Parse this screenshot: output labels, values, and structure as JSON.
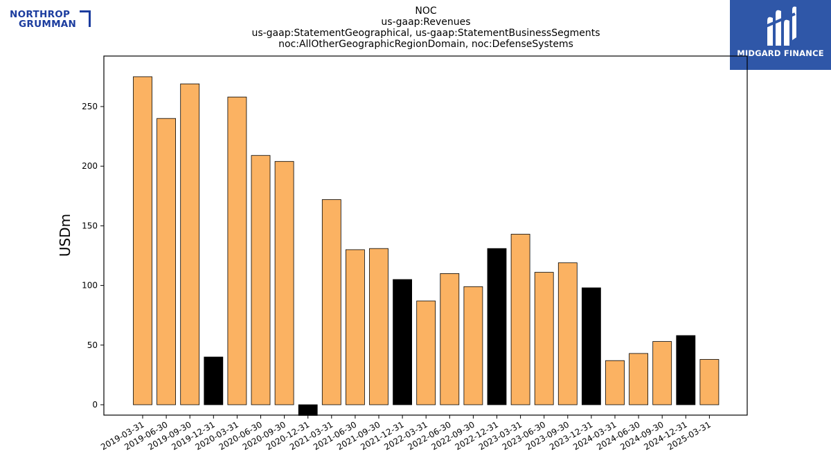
{
  "header": {
    "title_lines": [
      "NOC",
      "us-gaap:Revenues",
      "us-gaap:StatementGeographical, us-gaap:StatementBusinessSegments",
      "noc:AllOtherGeographicRegionDomain, noc:DefenseSystems"
    ]
  },
  "logos": {
    "left": {
      "line1": "NORTHROP",
      "line2": "GRUMMAN",
      "color": "#1b3c9e"
    },
    "right": {
      "text": "MIDGARD FINANCE",
      "background": "#2f57a8"
    }
  },
  "colors": {
    "bar_default": "#fbb262",
    "bar_highlight": "#000000"
  },
  "chart_data": {
    "type": "bar",
    "title": "NOC\nus-gaap:Revenues\nus-gaap:StatementGeographical, us-gaap:StatementBusinessSegments\nnoc:AllOtherGeographicRegionDomain, noc:DefenseSystems",
    "xlabel": "",
    "ylabel": "USDm",
    "ylim": [
      -9,
      293
    ],
    "yticks": [
      0,
      50,
      100,
      150,
      200,
      250
    ],
    "grid": false,
    "categories": [
      "2019-03-31",
      "2019-06-30",
      "2019-09-30",
      "2019-12-31",
      "2020-03-31",
      "2020-06-30",
      "2020-09-30",
      "2020-12-31",
      "2021-03-31",
      "2021-06-30",
      "2021-09-30",
      "2021-12-31",
      "2022-03-31",
      "2022-06-30",
      "2022-09-30",
      "2022-12-31",
      "2023-03-31",
      "2023-06-30",
      "2023-09-30",
      "2023-12-31",
      "2024-03-31",
      "2024-06-30",
      "2024-09-30",
      "2024-12-31",
      "2025-03-31"
    ],
    "values": [
      275,
      240,
      269,
      40,
      258,
      209,
      204,
      -9,
      172,
      130,
      131,
      105,
      87,
      110,
      99,
      131,
      143,
      111,
      119,
      98,
      37,
      43,
      53,
      58,
      38
    ],
    "highlight": [
      false,
      false,
      false,
      true,
      false,
      false,
      false,
      true,
      false,
      false,
      false,
      true,
      false,
      false,
      false,
      true,
      false,
      false,
      false,
      true,
      false,
      false,
      false,
      true,
      false
    ]
  }
}
